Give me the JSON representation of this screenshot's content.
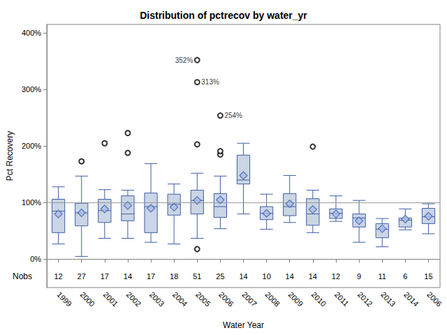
{
  "chart_data": {
    "type": "boxplot",
    "title": "Distribution of pctrecov by water_yr",
    "x_label": "Water Year",
    "y_label": "Pct Recovery",
    "categories": [
      "1999",
      "2000",
      "2001",
      "2002",
      "2003",
      "2004",
      "2005",
      "2006",
      "2007",
      "2008",
      "2009",
      "2010",
      "2011",
      "2012",
      "2013",
      "2014",
      "2006"
    ],
    "boxes": [
      [
        27,
        47,
        85,
        106,
        128
      ],
      [
        5,
        59,
        82,
        99,
        147
      ],
      [
        37,
        65,
        86,
        106,
        123
      ],
      [
        37,
        68,
        80,
        112,
        122
      ],
      [
        30,
        47,
        93,
        117,
        169
      ],
      [
        27,
        78,
        97,
        115,
        133
      ],
      [
        37,
        80,
        104,
        122,
        152
      ],
      [
        54,
        74,
        93,
        116,
        147
      ],
      [
        80,
        133,
        140,
        184,
        205
      ],
      [
        53,
        70,
        81,
        93,
        115
      ],
      [
        65,
        77,
        93,
        116,
        148
      ],
      [
        47,
        60,
        80,
        107,
        122
      ],
      [
        67,
        72,
        81,
        89,
        112
      ],
      [
        30,
        57,
        73,
        80,
        104
      ],
      [
        22,
        38,
        53,
        63,
        72
      ],
      [
        52,
        57,
        69,
        73,
        89
      ],
      [
        45,
        63,
        75,
        90,
        98
      ]
    ],
    "means": [
      80,
      82,
      89,
      95,
      90,
      92,
      104,
      105,
      148,
      81,
      98,
      88,
      80,
      68,
      54,
      71,
      76
    ],
    "outliers": [
      [],
      [
        173
      ],
      [
        205
      ],
      [
        223,
        188
      ],
      [],
      [],
      [
        18,
        203,
        313,
        352
      ],
      [
        185,
        191,
        254
      ],
      [],
      [],
      [],
      [
        199
      ],
      [],
      [],
      [],
      [],
      []
    ],
    "nobs_label": "Nobs",
    "nobs": [
      12,
      27,
      17,
      14,
      17,
      18,
      51,
      25,
      14,
      10,
      14,
      14,
      12,
      9,
      11,
      6,
      15
    ],
    "annotations": [
      {
        "category_index": 6,
        "value": 352,
        "label": "352%"
      },
      {
        "category_index": 6,
        "value": 313,
        "label": "313%"
      },
      {
        "category_index": 7,
        "value": 254,
        "label": "254%"
      }
    ],
    "reference_line": 100,
    "ylim": [
      -50,
      415
    ],
    "yticks": [
      {
        "value": 0,
        "label": "0%"
      },
      {
        "value": 100,
        "label": "100%"
      },
      {
        "value": 200,
        "label": "200%"
      },
      {
        "value": 300,
        "label": "300%"
      },
      {
        "value": 400,
        "label": "400%"
      }
    ],
    "color": "#cad5e5",
    "grid": false
  }
}
